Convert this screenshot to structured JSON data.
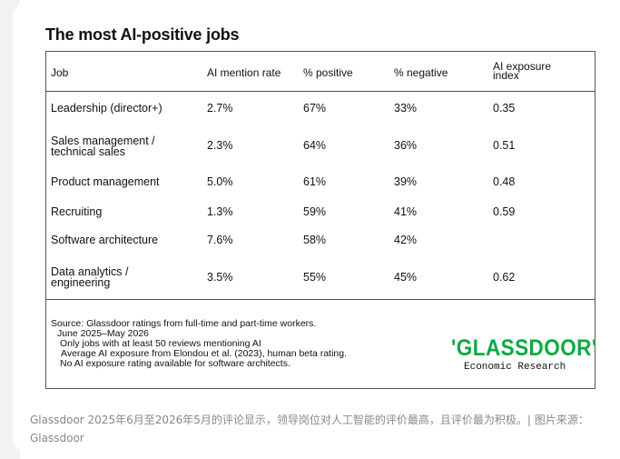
{
  "figure": {
    "title": "The most AI-positive jobs",
    "headers": [
      "Job",
      "AI mention rate",
      "% positive",
      "% negative",
      "AI exposure\nindex"
    ],
    "rows": [
      {
        "job": "Leadership (director+)",
        "mention": "2.7%",
        "positive": "67%",
        "negative": "33%",
        "exposure": "0.35"
      },
      {
        "job": "Sales management /\ntechnical sales",
        "mention": "2.3%",
        "positive": "64%",
        "negative": "36%",
        "exposure": "0.51"
      },
      {
        "job": "Product management",
        "mention": "5.0%",
        "positive": "61%",
        "negative": "39%",
        "exposure": "0.48"
      },
      {
        "job": "Recruiting",
        "mention": "1.3%",
        "positive": "59%",
        "negative": "41%",
        "exposure": "0.59"
      },
      {
        "job": "Software architecture",
        "mention": "7.6%",
        "positive": "58%",
        "negative": "42%",
        "exposure": ""
      },
      {
        "job": "Data analytics /\nengineering",
        "mention": "3.5%",
        "positive": "55%",
        "negative": "45%",
        "exposure": "0.62"
      }
    ],
    "source_lines": [
      "Source: Glassdoor ratings from full-time and part-time workers.",
      "June 2025–May 2026",
      "Only jobs with at least 50 reviews mentioning AI",
      "Average AI exposure from Elondou et al. (2023), human beta rating.",
      "No AI exposure rating available for software architects."
    ],
    "logo": {
      "wordmark": "'GLASSDOOR'",
      "subtitle": "Economic Research",
      "brand_color": "#0caa41"
    }
  },
  "caption": "Glassdoor 2025年6月至2026年5月的评论显示，领导岗位对人工智能的评价最高，且评价最为积极。| 图片来源：Glassdoor"
}
